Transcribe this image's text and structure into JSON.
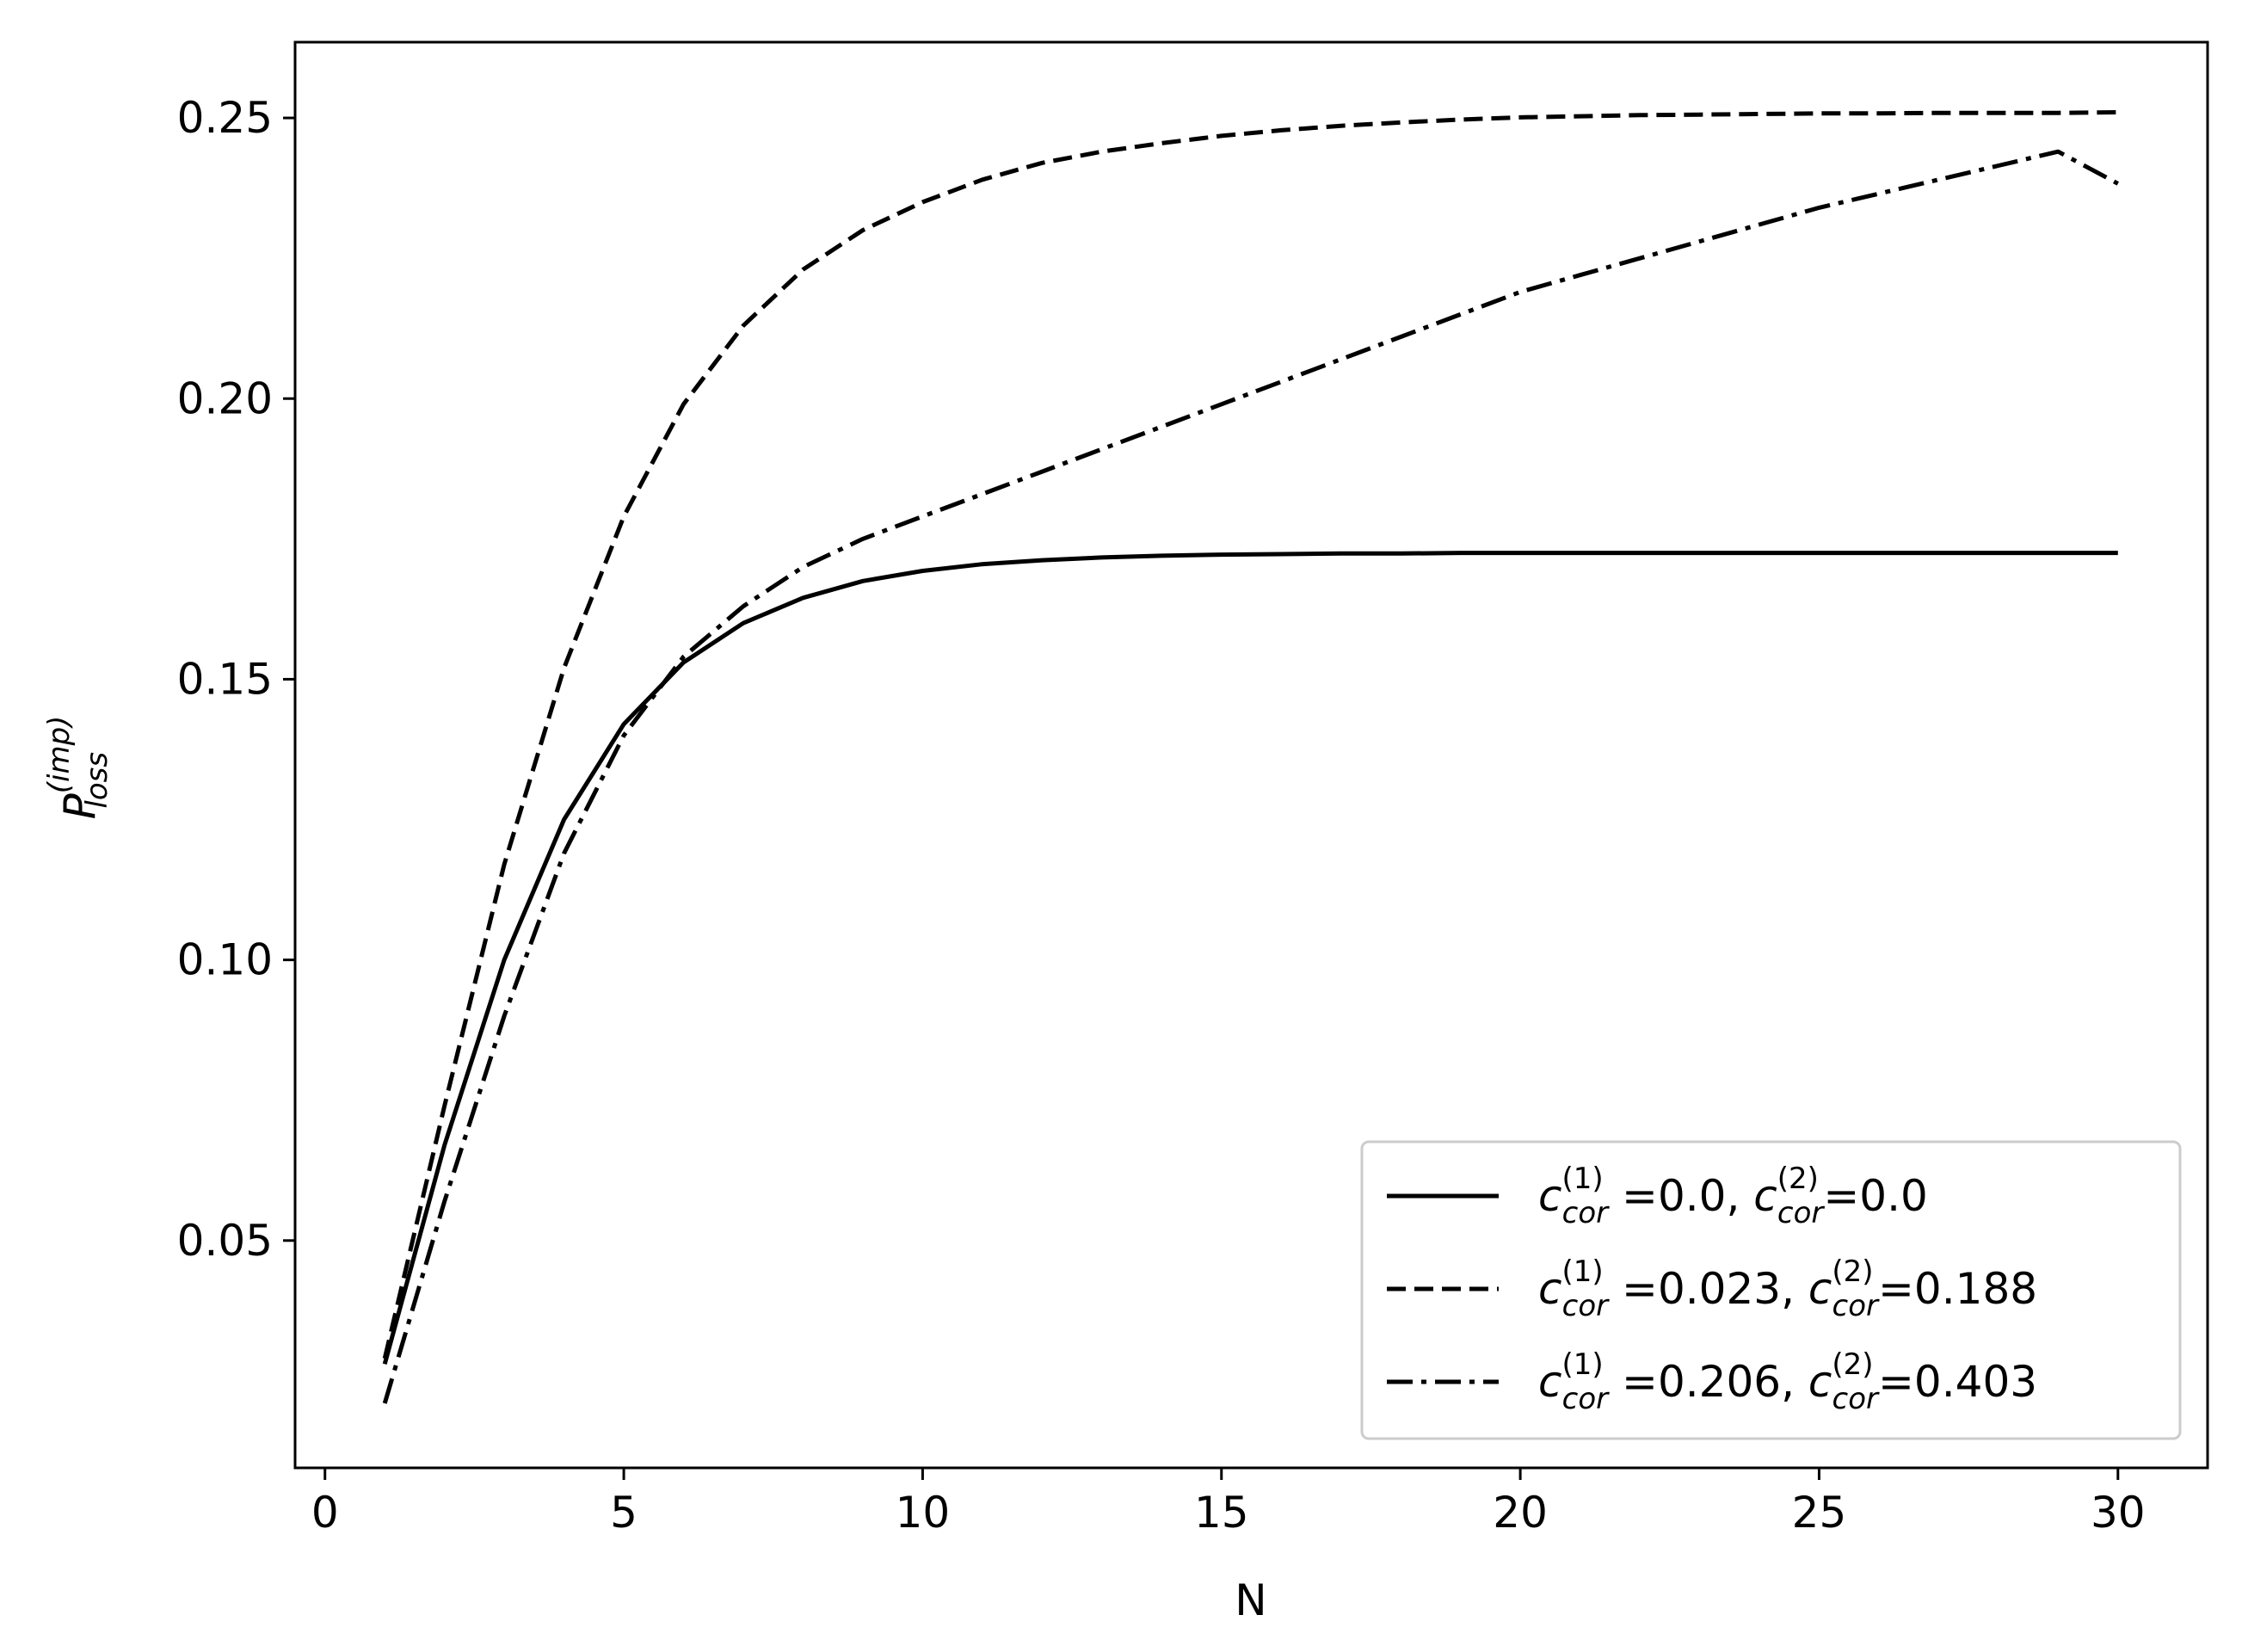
{
  "chart_data": {
    "type": "line",
    "title": "",
    "xlabel": "N",
    "ylabel": {
      "base": "P",
      "sub": "loss",
      "sup": "(imp)"
    },
    "xlim": [
      -0.5,
      31.5
    ],
    "ylim": [
      0.0095,
      0.2635
    ],
    "xticks": [
      0,
      5,
      10,
      15,
      20,
      25,
      30
    ],
    "xtick_labels": [
      "0",
      "5",
      "10",
      "15",
      "20",
      "25",
      "30"
    ],
    "yticks": [
      0.05,
      0.1,
      0.15,
      0.2,
      0.25
    ],
    "ytick_labels": [
      "0.05",
      "0.10",
      "0.15",
      "0.20",
      "0.25"
    ],
    "grid": false,
    "legend_position": "lower-right",
    "x": [
      1,
      2,
      3,
      4,
      5,
      6,
      7,
      8,
      9,
      10,
      11,
      12,
      13,
      14,
      15,
      16,
      17,
      18,
      19,
      20,
      21,
      22,
      23,
      24,
      25,
      26,
      27,
      28,
      29,
      30
    ],
    "series": [
      {
        "style": "solid",
        "color": "#000000",
        "legend": {
          "c1": "=0.0",
          "c2": "=0.0"
        },
        "values": [
          0.028,
          0.067,
          0.1,
          0.125,
          0.142,
          0.153,
          0.16,
          0.1645,
          0.1675,
          0.1693,
          0.1705,
          0.1712,
          0.1717,
          0.172,
          0.1722,
          0.1723,
          0.1724,
          0.1724,
          0.1725,
          0.1725,
          0.1725,
          0.1725,
          0.1725,
          0.1725,
          0.1725,
          0.1725,
          0.1725,
          0.1725,
          0.1725,
          0.1725
        ]
      },
      {
        "style": "dashed",
        "color": "#000000",
        "legend": {
          "c1": "=0.023",
          "c2": "=0.188"
        },
        "values": [
          0.029,
          0.074,
          0.117,
          0.152,
          0.179,
          0.199,
          0.213,
          0.223,
          0.23,
          0.235,
          0.239,
          0.242,
          0.244,
          0.2455,
          0.2468,
          0.2478,
          0.2486,
          0.2492,
          0.2497,
          0.2501,
          0.2503,
          0.2505,
          0.2506,
          0.2507,
          0.2508,
          0.2508,
          0.2509,
          0.2509,
          0.2509,
          0.251
        ]
      },
      {
        "style": "dashdot",
        "color": "#000000",
        "legend": {
          "c1": "=0.206",
          "c2": "=0.403"
        },
        "values": [
          0.021,
          0.057,
          0.09,
          0.119,
          0.14,
          0.154,
          0.163,
          0.17,
          0.175,
          0.179,
          0.183,
          0.187,
          0.191,
          0.195,
          0.199,
          0.203,
          0.207,
          0.211,
          0.215,
          0.219,
          0.222,
          0.225,
          0.228,
          0.231,
          0.234,
          0.2365,
          0.239,
          0.2415,
          0.244,
          0.2383
        ]
      }
    ],
    "legend_symbol": {
      "base": "c",
      "sub": "cor",
      "sup1": "(1)",
      "sup2": "(2)"
    }
  }
}
